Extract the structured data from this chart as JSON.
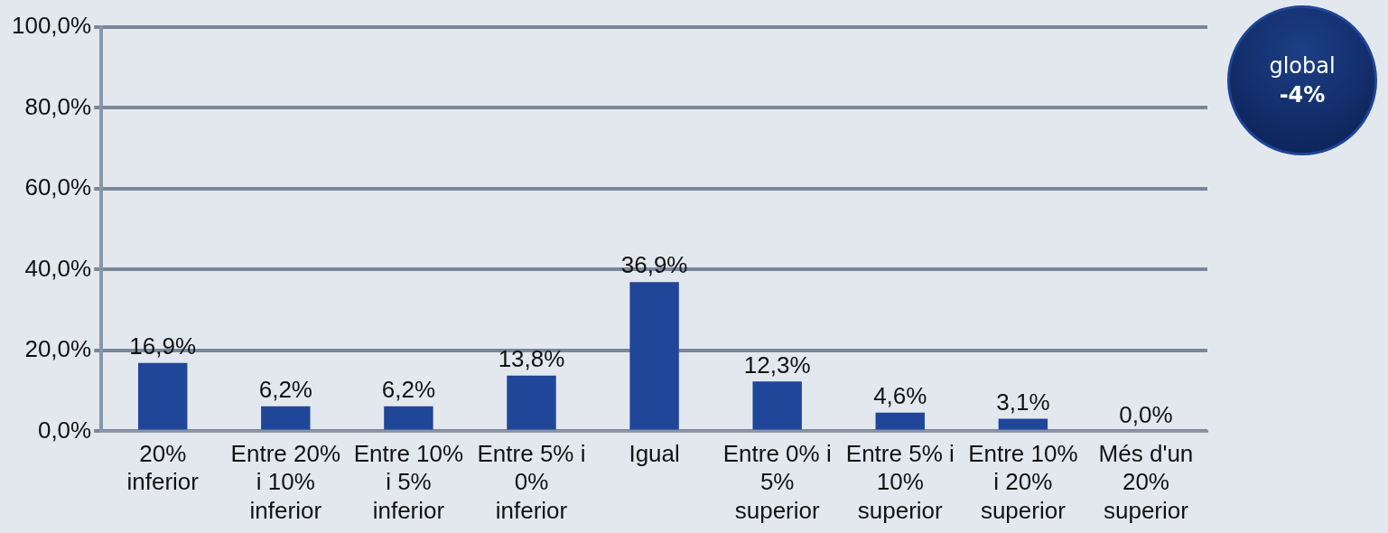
{
  "chart_data": {
    "type": "bar",
    "categories": [
      "20% inferior",
      "Entre 20% i 10% inferior",
      "Entre 10% i 5% inferior",
      "Entre 5% i 0% inferior",
      "Igual",
      "Entre 0% i 5% superior",
      "Entre 5% i 10% superior",
      "Entre 10% i 20% superior",
      "Més d'un 20% superior"
    ],
    "values": [
      16.9,
      6.2,
      6.2,
      13.8,
      36.9,
      12.3,
      4.6,
      3.1,
      0.0
    ],
    "value_labels": [
      "16,9%",
      "6,2%",
      "6,2%",
      "13,8%",
      "36,9%",
      "12,3%",
      "4,6%",
      "3,1%",
      "0,0%"
    ],
    "color": "#1f4699",
    "ylim": [
      0,
      100
    ],
    "yticks": [
      {
        "value": 0,
        "label": "0,0%"
      },
      {
        "value": 20,
        "label": "20,0%"
      },
      {
        "value": 40,
        "label": "40,0%"
      },
      {
        "value": 60,
        "label": "60,0%"
      },
      {
        "value": 80,
        "label": "80,0%"
      },
      {
        "value": 100,
        "label": "100,0%"
      }
    ],
    "grid": "y",
    "legend": false,
    "annotations": [
      "global",
      "-4%"
    ]
  }
}
